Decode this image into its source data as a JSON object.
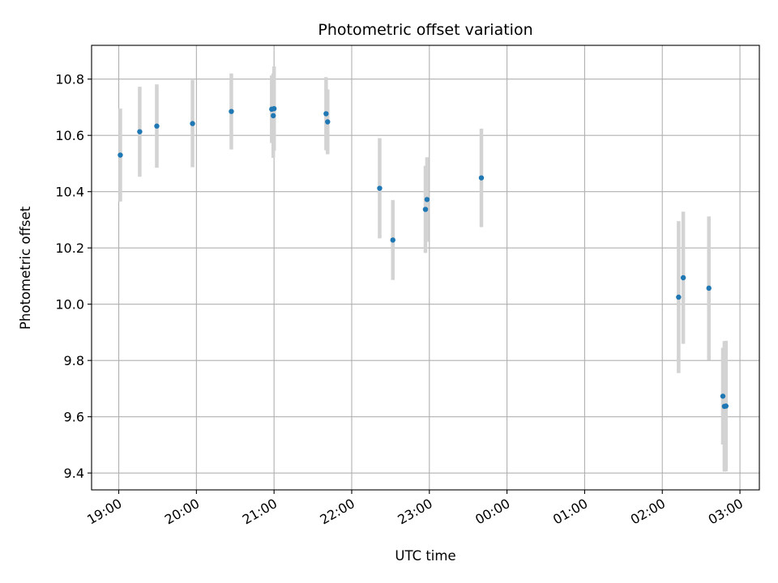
{
  "chart_data": {
    "type": "scatter",
    "title": "Photometric offset variation",
    "xlabel": "UTC time",
    "ylabel": "Photometric offset",
    "grid": true,
    "xlim": [
      -0.35,
      8.25
    ],
    "ylim": [
      9.34,
      10.92
    ],
    "x_ticks": [
      {
        "value": 0,
        "label": "19:00"
      },
      {
        "value": 1,
        "label": "20:00"
      },
      {
        "value": 2,
        "label": "21:00"
      },
      {
        "value": 3,
        "label": "22:00"
      },
      {
        "value": 4,
        "label": "23:00"
      },
      {
        "value": 5,
        "label": "00:00"
      },
      {
        "value": 6,
        "label": "01:00"
      },
      {
        "value": 7,
        "label": "02:00"
      },
      {
        "value": 8,
        "label": "03:00"
      }
    ],
    "y_ticks": [
      {
        "value": 9.4,
        "label": "9.4"
      },
      {
        "value": 9.6,
        "label": "9.6"
      },
      {
        "value": 9.8,
        "label": "9.8"
      },
      {
        "value": 10.0,
        "label": "10.0"
      },
      {
        "value": 10.2,
        "label": "10.2"
      },
      {
        "value": 10.4,
        "label": "10.4"
      },
      {
        "value": 10.6,
        "label": "10.6"
      },
      {
        "value": 10.8,
        "label": "10.8"
      }
    ],
    "x_unit": "hours since 19:00 UTC",
    "colors": {
      "point": "#1f77b4",
      "errorbar": "#d3d3d3",
      "grid": "#b0b0b0",
      "axes": "#000000"
    },
    "series": [
      {
        "name": "offset",
        "points": [
          {
            "x": 0.02,
            "y": 10.53,
            "err": 0.165
          },
          {
            "x": 0.27,
            "y": 10.613,
            "err": 0.16
          },
          {
            "x": 0.49,
            "y": 10.633,
            "err": 0.148
          },
          {
            "x": 0.95,
            "y": 10.642,
            "err": 0.155
          },
          {
            "x": 1.45,
            "y": 10.685,
            "err": 0.135
          },
          {
            "x": 1.97,
            "y": 10.693,
            "err": 0.12
          },
          {
            "x": 1.99,
            "y": 10.67,
            "err": 0.15
          },
          {
            "x": 2.0,
            "y": 10.695,
            "err": 0.15
          },
          {
            "x": 2.67,
            "y": 10.677,
            "err": 0.13
          },
          {
            "x": 2.69,
            "y": 10.648,
            "err": 0.115
          },
          {
            "x": 3.36,
            "y": 10.412,
            "err": 0.178
          },
          {
            "x": 3.53,
            "y": 10.228,
            "err": 0.142
          },
          {
            "x": 3.95,
            "y": 10.337,
            "err": 0.155
          },
          {
            "x": 3.97,
            "y": 10.372,
            "err": 0.15
          },
          {
            "x": 4.67,
            "y": 10.449,
            "err": 0.175
          },
          {
            "x": 7.21,
            "y": 10.025,
            "err": 0.27
          },
          {
            "x": 7.27,
            "y": 10.094,
            "err": 0.235
          },
          {
            "x": 7.6,
            "y": 10.057,
            "err": 0.255
          },
          {
            "x": 7.78,
            "y": 9.673,
            "err": 0.172
          },
          {
            "x": 7.8,
            "y": 9.637,
            "err": 0.232
          },
          {
            "x": 7.82,
            "y": 9.638,
            "err": 0.232
          }
        ]
      }
    ]
  }
}
